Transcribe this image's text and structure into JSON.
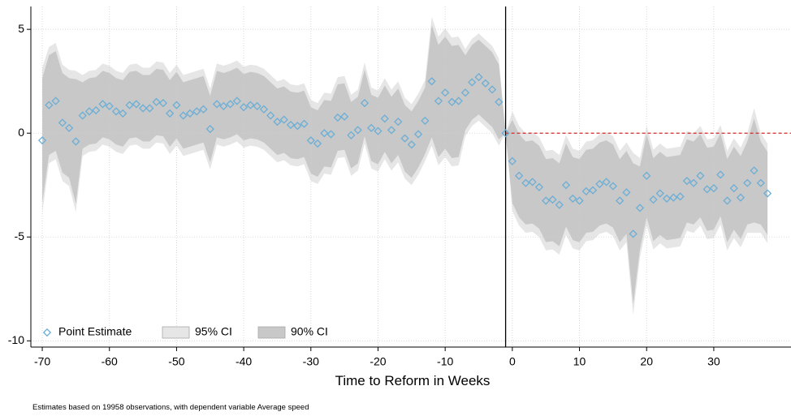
{
  "chart_data": {
    "type": "event-study",
    "x_label": "Time to Reform in Weeks",
    "note": "Estimates based on 19958 observations, with dependent variable Average speed",
    "x": [
      -70,
      -69,
      -68,
      -67,
      -66,
      -65,
      -64,
      -63,
      -62,
      -61,
      -60,
      -59,
      -58,
      -57,
      -56,
      -55,
      -54,
      -53,
      -52,
      -51,
      -50,
      -49,
      -48,
      -47,
      -46,
      -45,
      -44,
      -43,
      -42,
      -41,
      -40,
      -39,
      -38,
      -37,
      -36,
      -35,
      -34,
      -33,
      -32,
      -31,
      -30,
      -29,
      -28,
      -27,
      -26,
      -25,
      -24,
      -23,
      -22,
      -21,
      -20,
      -19,
      -18,
      -17,
      -16,
      -15,
      -14,
      -13,
      -12,
      -11,
      -10,
      -9,
      -8,
      -7,
      -6,
      -5,
      -4,
      -3,
      -2,
      -1,
      0,
      1,
      2,
      3,
      4,
      5,
      6,
      7,
      8,
      9,
      10,
      11,
      12,
      13,
      14,
      15,
      16,
      17,
      18,
      19,
      20,
      21,
      22,
      23,
      24,
      25,
      26,
      27,
      28,
      29,
      30,
      31,
      32,
      33,
      34,
      35,
      36,
      37,
      38
    ],
    "series": [
      {
        "name": "Point Estimate",
        "color": "#6baed6",
        "values": [
          -0.35,
          1.35,
          1.55,
          0.5,
          0.25,
          -0.4,
          0.85,
          1.05,
          1.1,
          1.4,
          1.3,
          1.05,
          0.95,
          1.35,
          1.4,
          1.2,
          1.2,
          1.5,
          1.45,
          0.95,
          1.35,
          0.85,
          0.95,
          1.05,
          1.15,
          0.2,
          1.4,
          1.3,
          1.4,
          1.55,
          1.25,
          1.35,
          1.3,
          1.15,
          0.85,
          0.55,
          0.65,
          0.4,
          0.35,
          0.45,
          -0.35,
          -0.5,
          0,
          -0.05,
          0.75,
          0.8,
          -0.1,
          0.15,
          1.45,
          0.25,
          0.1,
          0.7,
          0.15,
          0.55,
          -0.25,
          -0.55,
          -0.05,
          0.6,
          2.5,
          1.55,
          1.95,
          1.5,
          1.55,
          1.95,
          2.45,
          2.7,
          2.4,
          2.1,
          1.5,
          0,
          -1.35,
          -2.05,
          -2.4,
          -2.35,
          -2.6,
          -3.25,
          -3.2,
          -3.45,
          -2.5,
          -3.15,
          -3.25,
          -2.8,
          -2.75,
          -2.45,
          -2.35,
          -2.55,
          -3.25,
          -2.85,
          -4.85,
          -3.6,
          -2.05,
          -3.2,
          -2.9,
          -3.15,
          -3.1,
          -3.05,
          -2.3,
          -2.4,
          -2.05,
          -2.7,
          -2.65,
          -2.0,
          -3.25,
          -2.65,
          -3.1,
          -2.4,
          -1.8,
          -2.4,
          -2.9
        ]
      },
      {
        "name": "95% CI",
        "color": "#e6e6e6",
        "lower": [
          -3.85,
          -1.45,
          -1.25,
          -2.3,
          -2.55,
          -3.8,
          -1.1,
          -0.9,
          -0.85,
          -0.55,
          -0.65,
          -0.9,
          -1.0,
          -0.6,
          -0.55,
          -0.75,
          -0.75,
          -0.45,
          -0.5,
          -1.0,
          -0.6,
          -1.1,
          -1.0,
          -0.9,
          -0.8,
          -1.75,
          -0.55,
          -0.65,
          -0.55,
          -0.4,
          -0.7,
          -0.6,
          -0.65,
          -0.8,
          -1.1,
          -1.4,
          -1.3,
          -1.55,
          -1.6,
          -1.5,
          -2.3,
          -2.45,
          -1.95,
          -2.0,
          -1.2,
          -1.15,
          -2.05,
          -1.8,
          -0.5,
          -1.7,
          -1.85,
          -1.25,
          -1.8,
          -1.4,
          -2.2,
          -2.5,
          -2.0,
          -1.35,
          -0.6,
          -1.55,
          -1.15,
          -1.6,
          -1.55,
          -0.15,
          0.35,
          0.6,
          0.3,
          0.0,
          -0.6,
          0,
          -3.75,
          -4.45,
          -4.8,
          -4.75,
          -5.0,
          -5.65,
          -5.6,
          -5.85,
          -4.9,
          -5.55,
          -5.65,
          -5.2,
          -5.15,
          -4.85,
          -4.75,
          -4.95,
          -5.65,
          -5.25,
          -8.75,
          -6.0,
          -4.45,
          -5.6,
          -5.3,
          -5.55,
          -5.5,
          -5.45,
          -4.7,
          -4.8,
          -4.45,
          -5.1,
          -5.05,
          -4.4,
          -5.65,
          -5.05,
          -5.5,
          -4.8,
          -4.8,
          -4.8,
          -5.3
        ],
        "upper": [
          3.15,
          4.15,
          4.35,
          3.3,
          3.05,
          3.0,
          2.8,
          3.0,
          3.05,
          3.35,
          3.25,
          3.0,
          2.9,
          3.3,
          3.35,
          3.15,
          3.15,
          3.45,
          3.4,
          2.9,
          3.3,
          2.8,
          2.9,
          3.0,
          3.1,
          2.15,
          3.35,
          3.25,
          3.35,
          3.5,
          3.2,
          3.3,
          3.25,
          3.1,
          2.8,
          2.5,
          2.6,
          2.35,
          2.3,
          2.4,
          1.6,
          1.45,
          1.95,
          1.9,
          2.7,
          2.75,
          1.85,
          2.1,
          3.4,
          2.2,
          2.05,
          2.65,
          2.1,
          2.5,
          1.7,
          1.4,
          1.9,
          2.55,
          5.6,
          4.65,
          5.05,
          4.6,
          4.65,
          4.05,
          4.55,
          4.8,
          4.5,
          4.2,
          3.6,
          0,
          1.05,
          0.35,
          0.0,
          0.05,
          -0.2,
          -0.85,
          -0.8,
          -1.05,
          -0.1,
          -0.75,
          -0.85,
          -0.4,
          -0.35,
          -0.05,
          0.05,
          -0.15,
          -0.85,
          -0.45,
          -0.95,
          -1.2,
          0.35,
          -0.8,
          -0.5,
          -0.75,
          -0.7,
          -0.65,
          0.1,
          0.0,
          0.35,
          -0.3,
          -0.25,
          0.4,
          -0.85,
          -0.25,
          -0.7,
          0.0,
          1.2,
          0.0,
          -0.5
        ]
      },
      {
        "name": "90% CI",
        "color": "#c8c8c8",
        "lower": [
          -3.35,
          -1.05,
          -0.85,
          -1.9,
          -2.15,
          -3.4,
          -0.75,
          -0.55,
          -0.5,
          -0.2,
          -0.3,
          -0.55,
          -0.65,
          -0.25,
          -0.2,
          -0.4,
          -0.4,
          -0.1,
          -0.15,
          -0.65,
          -0.25,
          -0.75,
          -0.65,
          -0.55,
          -0.45,
          -1.4,
          -0.2,
          -0.3,
          -0.2,
          -0.05,
          -0.35,
          -0.25,
          -0.3,
          -0.45,
          -0.75,
          -1.05,
          -0.95,
          -1.2,
          -1.25,
          -1.15,
          -1.95,
          -2.1,
          -1.6,
          -1.65,
          -0.85,
          -0.8,
          -1.7,
          -1.45,
          -0.15,
          -1.35,
          -1.5,
          -0.9,
          -1.45,
          -1.05,
          -1.85,
          -2.15,
          -1.65,
          -1.0,
          -0.2,
          -1.15,
          -0.75,
          -1.2,
          -1.15,
          0.15,
          0.65,
          0.9,
          0.6,
          0.3,
          -0.3,
          0,
          -3.35,
          -4.05,
          -4.4,
          -4.35,
          -4.6,
          -5.25,
          -5.2,
          -5.45,
          -4.5,
          -5.15,
          -5.25,
          -4.8,
          -4.75,
          -4.45,
          -4.35,
          -4.55,
          -5.25,
          -4.85,
          -8.25,
          -5.6,
          -4.05,
          -5.2,
          -4.9,
          -5.15,
          -5.1,
          -5.05,
          -4.3,
          -4.4,
          -4.05,
          -4.7,
          -4.65,
          -4.0,
          -5.25,
          -4.65,
          -5.1,
          -4.4,
          -4.3,
          -4.4,
          -4.9
        ],
        "upper": [
          2.65,
          3.75,
          3.95,
          2.9,
          2.65,
          2.6,
          2.45,
          2.65,
          2.7,
          3.0,
          2.9,
          2.65,
          2.55,
          2.95,
          3.0,
          2.8,
          2.8,
          3.1,
          3.05,
          2.55,
          2.95,
          2.45,
          2.55,
          2.65,
          2.75,
          1.8,
          3.0,
          2.9,
          3.0,
          3.15,
          2.85,
          2.95,
          2.9,
          2.75,
          2.45,
          2.15,
          2.25,
          2.0,
          1.95,
          2.05,
          1.25,
          1.1,
          1.6,
          1.55,
          2.35,
          2.4,
          1.5,
          1.75,
          3.05,
          1.85,
          1.7,
          2.3,
          1.75,
          2.15,
          1.35,
          1.05,
          1.55,
          2.2,
          5.2,
          4.25,
          4.65,
          4.2,
          4.25,
          3.75,
          4.25,
          4.5,
          4.2,
          3.9,
          3.3,
          0,
          0.65,
          -0.05,
          -0.4,
          -0.35,
          -0.6,
          -1.25,
          -1.2,
          -1.45,
          -0.5,
          -1.15,
          -1.25,
          -0.8,
          -0.75,
          -0.45,
          -0.35,
          -0.55,
          -1.25,
          -0.85,
          -1.45,
          -1.6,
          -0.05,
          -1.2,
          -0.9,
          -1.15,
          -1.1,
          -1.05,
          -0.3,
          -0.4,
          -0.05,
          -0.7,
          -0.65,
          0.0,
          -1.25,
          -0.65,
          -1.1,
          -0.4,
          0.7,
          -0.4,
          -0.9
        ]
      }
    ],
    "vline": -1,
    "vline_color": "#000000",
    "hline": 0,
    "hline_color": "#d62728",
    "xlim": [
      -71.7,
      41.5
    ],
    "ylim": [
      -10.3,
      6.1
    ],
    "xticks": [
      -70,
      -60,
      -50,
      -40,
      -30,
      -20,
      -10,
      0,
      10,
      20,
      30
    ],
    "yticks": [
      5,
      0,
      -5,
      -10
    ],
    "grid": true,
    "legend": "bottom-left"
  }
}
